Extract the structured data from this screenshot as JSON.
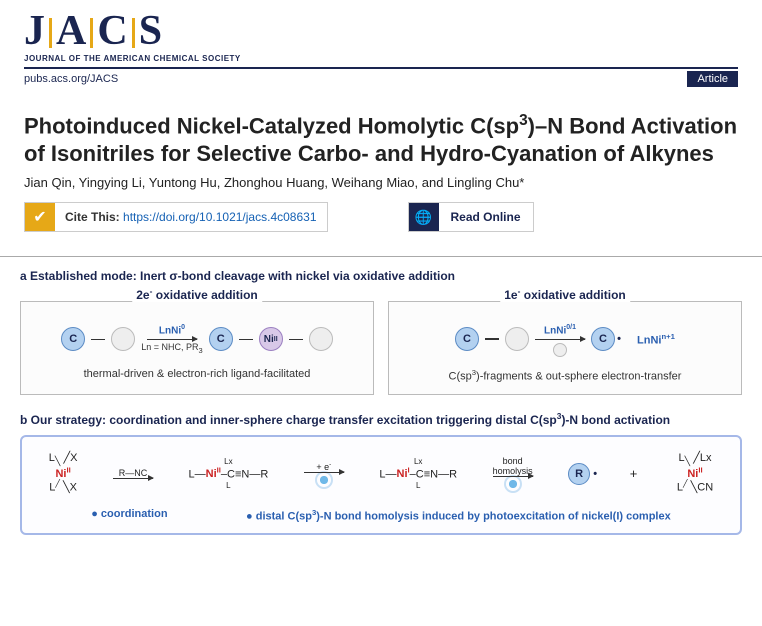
{
  "header": {
    "logo_letters": [
      "J",
      "A",
      "C",
      "S"
    ],
    "logo_subtitle": "JOURNAL OF THE AMERICAN CHEMICAL SOCIETY",
    "url": "pubs.acs.org/JACS",
    "article_badge": "Article"
  },
  "paper": {
    "title_html": "Photoinduced Nickel-Catalyzed Homolytic C(sp<sup>3</sup>)–N Bond Activation of Isonitriles for Selective Carbo- and Hydro-Cyanation of Alkynes",
    "authors": "Jian Qin, Yingying Li, Yuntong Hu, Zhonghou Huang, Weihang Miao, and Lingling Chu*",
    "cite_label": "Cite This: ",
    "cite_doi": "https://doi.org/10.1021/jacs.4c08631",
    "read_online": "Read Online"
  },
  "section_a": {
    "label": "a  Established mode: Inert σ-bond cleavage with nickel via oxidative addition",
    "left": {
      "title_html": "2e<sup>-</sup> oxidative addition",
      "arrow_top_html": "LnNi<sup>0</sup>",
      "arrow_bot_html": "Ln = NHC, PR<sub>3</sub>",
      "caption": "thermal-driven & electron-rich ligand-facilitated"
    },
    "right": {
      "title_html": "1e<sup>-</sup> oxidative addition",
      "arrow_top_html": "LnNi<sup>0/1</sup>",
      "species_html": "LnNi<sup>n+1</sup>",
      "caption_html": "C(sp<sup>3</sup>)-fragments & out-sphere electron-transfer"
    }
  },
  "section_b": {
    "label_html": "b  Our strategy: coordination and inner-sphere charge transfer excitation triggering distal C(sp<sup>3</sup>)-N bond activation",
    "step1_top": "R—NC",
    "step2_top_html": "+ e<sup>-</sup>",
    "step3_top": "bond",
    "step3_bot": "homolysis",
    "caption_left": "● coordination",
    "caption_right_html": "● distal C(sp<sup>3</sup>)-N bond homolysis induced by photoexcitation of nickel(I) complex"
  },
  "colors": {
    "navy": "#1a2550",
    "gold": "#e6a817",
    "link": "#1561b4",
    "ni_red": "#cc2222",
    "panel_border": "#a5b8e8",
    "atom_blue": "#b3d1f0"
  }
}
